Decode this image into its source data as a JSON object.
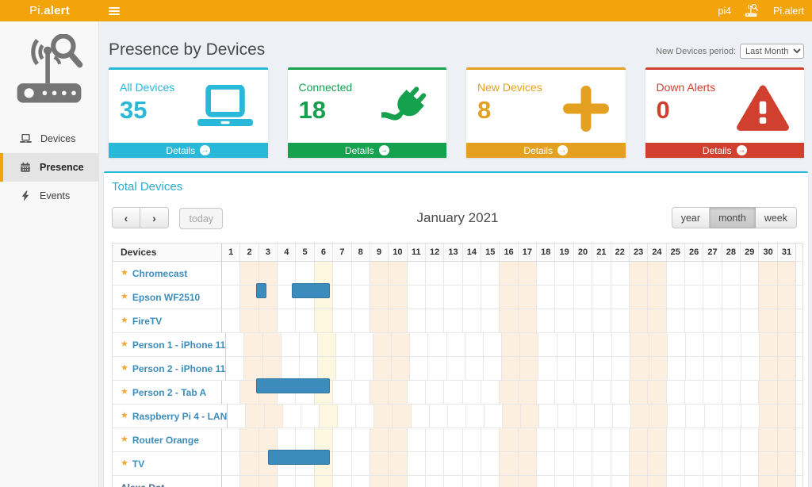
{
  "theme": {
    "header_color": "#f3a40a",
    "panel_accent": "#29b8d8"
  },
  "topbar": {
    "brand_prefix": "Pi.",
    "brand_bold": "alert",
    "hostname": "pi4",
    "user_label": "Pi.alert"
  },
  "sidebar": {
    "items": [
      {
        "label": "Devices",
        "icon": "laptop-icon",
        "active": false
      },
      {
        "label": "Presence",
        "icon": "calendar-icon",
        "active": true
      },
      {
        "label": "Events",
        "icon": "bolt-icon",
        "active": false
      }
    ]
  },
  "page": {
    "title": "Presence by Devices",
    "period_label": "New Devices period:",
    "period_value": "Last Month",
    "period_options": [
      "Last Month"
    ]
  },
  "cards": [
    {
      "label": "All Devices",
      "value": "35",
      "color": "#29b8d8",
      "icon": "laptop-icon",
      "footer_label": "Details"
    },
    {
      "label": "Connected",
      "value": "18",
      "color": "#16a14f",
      "icon": "plug-icon",
      "footer_label": "Details"
    },
    {
      "label": "New Devices",
      "value": "8",
      "color": "#e3a021",
      "icon": "plus-icon",
      "footer_label": "Details"
    },
    {
      "label": "Down Alerts",
      "value": "0",
      "color": "#d1402f",
      "icon": "warning-icon",
      "footer_label": "Details"
    }
  ],
  "calendar": {
    "section_title": "Total Devices",
    "title": "January 2021",
    "toolbar": {
      "prev": "‹",
      "next": "›",
      "today": "today",
      "views": [
        "year",
        "month",
        "week"
      ],
      "active_view": "month"
    },
    "table": {
      "device_col_header": "Devices",
      "num_days": 31,
      "weekend_days": [
        2,
        3,
        9,
        10,
        16,
        17,
        23,
        24,
        30,
        31
      ],
      "holiday_days": [
        6
      ],
      "weekend_color": "#fcefe0",
      "holiday_color": "#fdf7e0",
      "bar_color": "#3b8bbd",
      "star_glyph": "★"
    },
    "devices": [
      {
        "name": "Chromecast",
        "starred": true,
        "bars": []
      },
      {
        "name": "Epson WF2510",
        "starred": true,
        "bars": [
          [
            1.84,
            2.39
          ],
          [
            3.78,
            5.82
          ]
        ]
      },
      {
        "name": "FireTV",
        "starred": true,
        "bars": []
      },
      {
        "name": "Person 1 - iPhone 11",
        "starred": true,
        "bars": []
      },
      {
        "name": "Person 2 - iPhone 11",
        "starred": true,
        "bars": []
      },
      {
        "name": "Person 2 - Tab A",
        "starred": true,
        "bars": [
          [
            1.84,
            5.82
          ]
        ]
      },
      {
        "name": "Raspberry Pi 4 - LAN",
        "starred": true,
        "bars": []
      },
      {
        "name": "Router Orange",
        "starred": true,
        "bars": []
      },
      {
        "name": "TV",
        "starred": true,
        "bars": [
          [
            2.5,
            5.82
          ]
        ]
      },
      {
        "name": "Alexa Dot",
        "starred": false,
        "bars": []
      }
    ]
  }
}
